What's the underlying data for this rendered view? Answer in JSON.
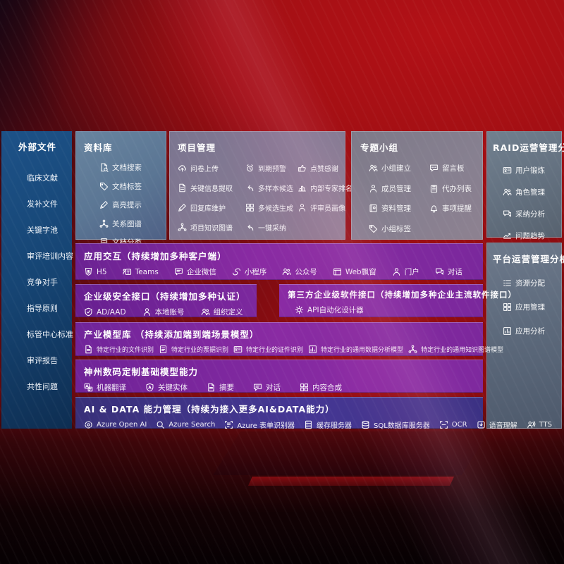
{
  "colors": {
    "accent_purple": "#8a2ba3",
    "panel_blue": "#164574",
    "panel_slate": "#63707f",
    "row_indigo": "#3b3183",
    "background_red": "#990d12"
  },
  "external": {
    "title": "外部文件",
    "items": [
      {
        "label": "临床文献"
      },
      {
        "label": "发补文件"
      },
      {
        "label": "关键字池"
      },
      {
        "label": "审评培训内容"
      },
      {
        "label": "竞争对手"
      },
      {
        "label": "指导原则"
      },
      {
        "label": "标管中心标准"
      },
      {
        "label": "审评报告"
      },
      {
        "label": "共性问题"
      }
    ]
  },
  "library": {
    "title": "资料库",
    "items": [
      {
        "icon": "docsearch",
        "label": "文档搜索"
      },
      {
        "icon": "tag",
        "label": "文档标签"
      },
      {
        "icon": "pencil",
        "label": "高亮提示"
      },
      {
        "icon": "graph",
        "label": "关系图谱"
      },
      {
        "icon": "doclist",
        "label": "文档分类"
      }
    ]
  },
  "project": {
    "title": "项目管理",
    "items": [
      {
        "icon": "cloudup",
        "label": "问卷上传"
      },
      {
        "icon": "alarm",
        "label": "到期预警"
      },
      {
        "icon": "thumb",
        "label": "点赞感谢"
      },
      {
        "icon": "doc",
        "label": "关键信息提取"
      },
      {
        "icon": "reply",
        "label": "多样本候选"
      },
      {
        "icon": "podium",
        "label": "内部专家排名"
      },
      {
        "icon": "pencil",
        "label": "回复库维护"
      },
      {
        "icon": "grid",
        "label": "多候选生成"
      },
      {
        "icon": "person",
        "label": "评审员画像"
      },
      {
        "icon": "graph",
        "label": "项目知识图谱"
      },
      {
        "icon": "reply",
        "label": "一键采纳"
      }
    ]
  },
  "groups": {
    "title": "专题小组",
    "items": [
      {
        "icon": "people",
        "label": "小组建立"
      },
      {
        "icon": "bbs",
        "label": "留言板"
      },
      {
        "icon": "person",
        "label": "成员管理"
      },
      {
        "icon": "clipboard",
        "label": "代办列表"
      },
      {
        "icon": "book",
        "label": "资料管理"
      },
      {
        "icon": "bell",
        "label": "事项提醒"
      },
      {
        "icon": "tag",
        "label": "小组标签"
      }
    ]
  },
  "raid": {
    "title": "RAID运营管理分析",
    "items": [
      {
        "icon": "idcard",
        "label": "用户锻炼"
      },
      {
        "icon": "people",
        "label": "角色管理"
      },
      {
        "icon": "chatqa",
        "label": "采纳分析"
      },
      {
        "icon": "trend",
        "label": "问题趋势"
      }
    ]
  },
  "platform": {
    "title": "平台运营管理分析",
    "items": [
      {
        "icon": "list",
        "label": "资源分配"
      },
      {
        "icon": "grid",
        "label": "应用管理"
      },
      {
        "icon": "chart",
        "label": "应用分析"
      }
    ]
  },
  "interaction": {
    "title": "应用交互（持续增加多种客户端）",
    "items": [
      {
        "icon": "h5",
        "label": "H5"
      },
      {
        "icon": "teams",
        "label": "Teams"
      },
      {
        "icon": "chat",
        "label": "企业微信"
      },
      {
        "icon": "scurve",
        "label": "小程序"
      },
      {
        "icon": "people",
        "label": "公众号"
      },
      {
        "icon": "window",
        "label": "Web飘窗"
      },
      {
        "icon": "person",
        "label": "门户"
      },
      {
        "icon": "chatqa",
        "label": "对话"
      }
    ]
  },
  "security": {
    "title": "企业级安全接口（持续增加多种认证）",
    "items": [
      {
        "icon": "shield",
        "label": "AD/AAD"
      },
      {
        "icon": "person",
        "label": "本地账号"
      },
      {
        "icon": "people",
        "label": "组织定义"
      }
    ]
  },
  "thirdparty": {
    "title": "第三方企业级软件接口（持续增加多种企业主流软件接口）",
    "items": [
      {
        "icon": "gear",
        "label": "API自动化设计器"
      }
    ]
  },
  "industry": {
    "title": "产业模型库 （持续添加端到端场景模型）",
    "items": [
      {
        "icon": "doc",
        "label": "特定行业的文件识别"
      },
      {
        "icon": "doclist",
        "label": "特定行业的票据识别"
      },
      {
        "icon": "idcard",
        "label": "特定行业的证件识别"
      },
      {
        "icon": "chart",
        "label": "特定行业的通用数据分析模型"
      },
      {
        "icon": "graph",
        "label": "特定行业的通用知识图谱模型"
      }
    ]
  },
  "base_models": {
    "title": "神州数码定制基础模型能力",
    "items": [
      {
        "icon": "translate",
        "label": "机器翻译"
      },
      {
        "icon": "shielda",
        "label": "关键实体"
      },
      {
        "icon": "doc",
        "label": "摘要"
      },
      {
        "icon": "chat",
        "label": "对话"
      },
      {
        "icon": "grid",
        "label": "内容合成"
      }
    ]
  },
  "ai_data": {
    "title": "AI & DATA 能力管理（持续为接入更多AI&DATA能力）",
    "items": [
      {
        "icon": "openai",
        "label": "Azure Open AI"
      },
      {
        "icon": "search",
        "label": "Azure Search"
      },
      {
        "icon": "docscan",
        "label": "Azure 表单识别器"
      },
      {
        "icon": "server",
        "label": "缓存服务器"
      },
      {
        "icon": "db",
        "label": "SQL数据库服务器"
      },
      {
        "icon": "ocr",
        "label": "OCR"
      },
      {
        "icon": "voice",
        "label": "语音理解"
      },
      {
        "icon": "tts",
        "label": "TTS"
      }
    ]
  }
}
